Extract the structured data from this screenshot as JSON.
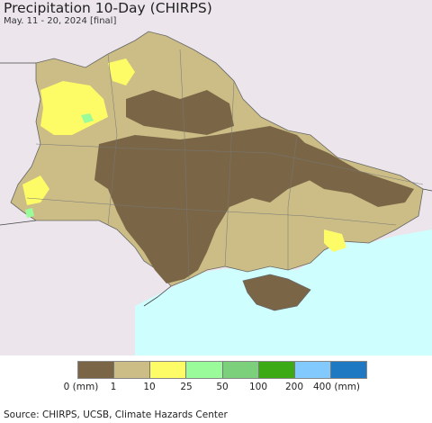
{
  "title": "Precipitation 10-Day (CHIRPS)",
  "subtitle": "May. 11 - 20, 2024 [final]",
  "legend": {
    "colors": [
      "#7a6647",
      "#cbbd85",
      "#fdfb66",
      "#9afb9a",
      "#7cd07c",
      "#3caa14",
      "#82c9fd",
      "#1f79c2"
    ],
    "labels": [
      "0 (mm)",
      "1",
      "10",
      "25",
      "50",
      "100",
      "200",
      "400 (mm)"
    ]
  },
  "source": "Source: CHIRPS, UCSB, Climate Hazards Center",
  "colors": {
    "sea": "#cffeff",
    "outside_land": "#ece6ec",
    "dry": "#7a6647",
    "light": "#cbbd85",
    "moderate": "#fdfb66",
    "wet": "#9afb9a"
  }
}
